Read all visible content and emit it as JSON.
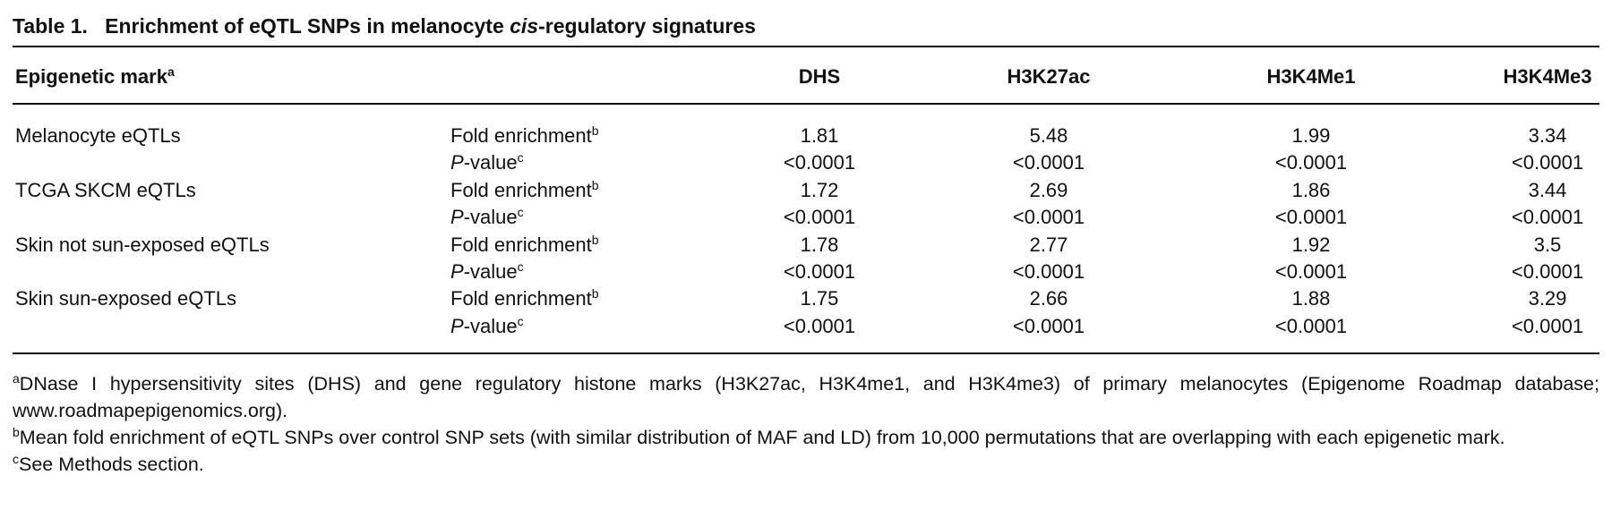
{
  "title": {
    "label": "Table 1.",
    "text": [
      "Enrichment of eQTL SNPs in melanocyte ",
      "cis",
      "-regulatory signatures"
    ]
  },
  "table": {
    "header": {
      "first": "Epigenetic mark",
      "first_note": "a",
      "columns": [
        "DHS",
        "H3K27ac",
        "H3K4Me1",
        "H3K4Me3"
      ]
    },
    "rows": [
      {
        "name": "Melanocyte eQTLs",
        "stats": [
          {
            "label": [
              "Fold enrichment"
            ],
            "note": "b",
            "values": [
              "1.81",
              "5.48",
              "1.99",
              "3.34"
            ]
          },
          {
            "label": [
              "P",
              "-value"
            ],
            "note": "c",
            "values": [
              "<0.0001",
              "<0.0001",
              "<0.0001",
              "<0.0001"
            ]
          }
        ]
      },
      {
        "name": "TCGA SKCM eQTLs",
        "stats": [
          {
            "label": [
              "Fold enrichment"
            ],
            "note": "b",
            "values": [
              "1.72",
              "2.69",
              "1.86",
              "3.44"
            ]
          },
          {
            "label": [
              "P",
              "-value"
            ],
            "note": "c",
            "values": [
              "<0.0001",
              "<0.0001",
              "<0.0001",
              "<0.0001"
            ]
          }
        ]
      },
      {
        "name": "Skin not sun-exposed eQTLs",
        "stats": [
          {
            "label": [
              "Fold enrichment"
            ],
            "note": "b",
            "values": [
              "1.78",
              "2.77",
              "1.92",
              "3.5"
            ]
          },
          {
            "label": [
              "P",
              "-value"
            ],
            "note": "c",
            "values": [
              "<0.0001",
              "<0.0001",
              "<0.0001",
              "<0.0001"
            ]
          }
        ]
      },
      {
        "name": "Skin sun-exposed eQTLs",
        "stats": [
          {
            "label": [
              "Fold enrichment"
            ],
            "note": "b",
            "values": [
              "1.75",
              "2.66",
              "1.88",
              "3.29"
            ]
          },
          {
            "label": [
              "P",
              "-value"
            ],
            "note": "c",
            "values": [
              "<0.0001",
              "<0.0001",
              "<0.0001",
              "<0.0001"
            ]
          }
        ]
      }
    ]
  },
  "footnotes": [
    {
      "mark": "a",
      "text": "DNase I hypersensitivity sites (DHS) and gene regulatory histone marks (H3K27ac, H3K4me1, and H3K4me3) of primary melanocytes (Epigenome Roadmap database; www.roadmapepigenomics.org)."
    },
    {
      "mark": "b",
      "text": "Mean fold enrichment of eQTL SNPs over control SNP sets (with similar distribution of MAF and LD) from 10,000 permutations that are overlapping with each epigenetic mark."
    },
    {
      "mark": "c",
      "text": "See Methods section."
    }
  ]
}
